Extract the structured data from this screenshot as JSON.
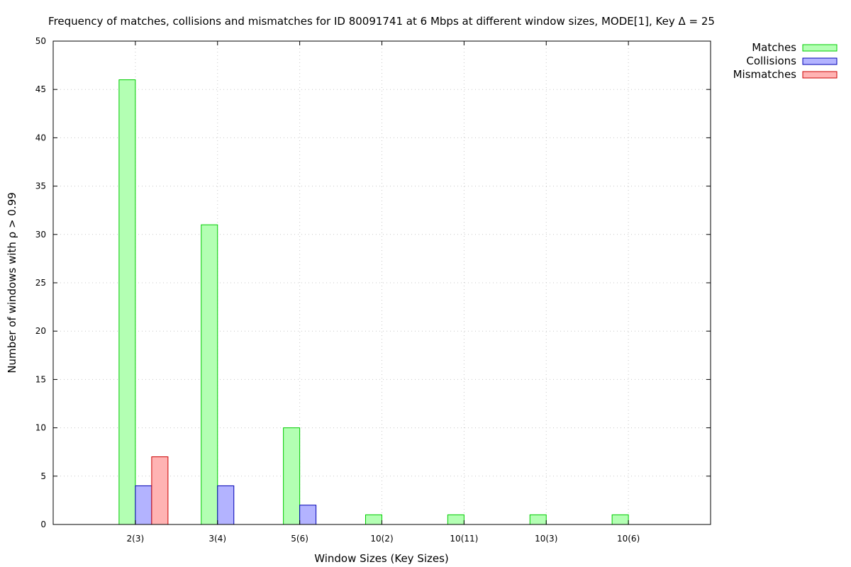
{
  "chart_data": {
    "type": "bar",
    "title": "Frequency of matches, collisions and mismatches for ID 80091741 at 6 Mbps at different window sizes, MODE[1], Key Δ = 25",
    "xlabel": "Window Sizes (Key Sizes)",
    "ylabel": "Number of windows with ρ > 0.99",
    "ylim": [
      0,
      50
    ],
    "yticks": [
      0,
      5,
      10,
      15,
      20,
      25,
      30,
      35,
      40,
      45,
      50
    ],
    "grid": true,
    "legend_position": "top-right",
    "categories": [
      "2(3)",
      "3(4)",
      "5(6)",
      "10(2)",
      "10(11)",
      "10(3)",
      "10(6)"
    ],
    "series": [
      {
        "name": "Matches",
        "values": [
          46,
          31,
          10,
          1,
          1,
          1,
          1
        ],
        "fill": "#b3ffb3",
        "stroke": "#00cc00"
      },
      {
        "name": "Collisions",
        "values": [
          4,
          4,
          2,
          0,
          0,
          0,
          0
        ],
        "fill": "#b3b3ff",
        "stroke": "#0000b3"
      },
      {
        "name": "Mismatches",
        "values": [
          7,
          0,
          0,
          0,
          0,
          0,
          0
        ],
        "fill": "#ffb3b3",
        "stroke": "#cc0000"
      }
    ]
  }
}
